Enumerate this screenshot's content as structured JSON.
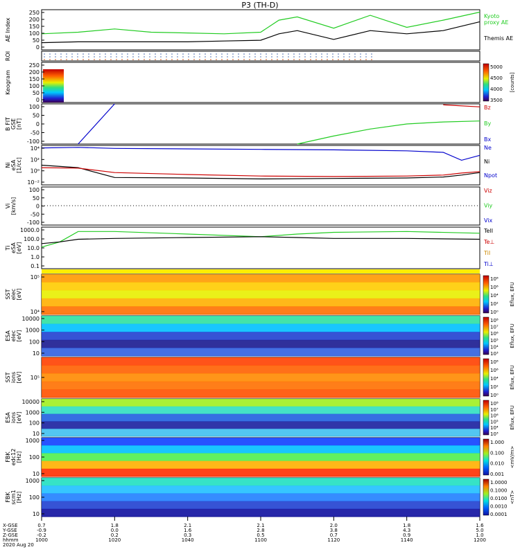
{
  "title": "P3 (TH-D)",
  "colors": {
    "ae_kyoto": "#22cc22",
    "ae_themis": "#000000",
    "bz": "#cc0000",
    "by": "#22cc22",
    "bx": "#0000cc",
    "ne": "#0000cc",
    "ni": "#000000",
    "npot": "#cc0000",
    "te": "#000000",
    "ti": "#22cc22"
  },
  "panels": [
    {
      "id": "ae",
      "ylabel": [
        "AE Index"
      ],
      "ticks": [
        "250",
        "200",
        "150",
        "100",
        "50",
        "0"
      ],
      "legend": [
        "Kyoto",
        "proxy AE",
        "Themis AE"
      ]
    },
    {
      "id": "roi",
      "ylabel": [
        "ROI"
      ],
      "ticks": [],
      "legend": []
    },
    {
      "id": "keogram",
      "ylabel": [
        "Keogram"
      ],
      "ticks": [
        "250",
        "200",
        "150",
        "100",
        "50",
        "0"
      ],
      "legend": []
    },
    {
      "id": "bfield",
      "ylabel": [
        "B FIT",
        "GSE",
        "[nT]"
      ],
      "ticks": [
        "100",
        "50",
        "0",
        "-50",
        "-100"
      ],
      "legend": [
        "Bz",
        "By",
        "Bx"
      ]
    },
    {
      "id": "density",
      "ylabel": [
        "Ni",
        "eSA",
        "[1/cc]"
      ],
      "ticks": [
        "10⁴",
        "10²",
        "10⁰",
        "10⁻²"
      ],
      "legend": [
        "Ne",
        "Ni",
        "Npot"
      ]
    },
    {
      "id": "velocity",
      "ylabel": [
        "Vi",
        "[km/s]"
      ],
      "ticks": [
        "100",
        "50",
        "0",
        "-50",
        "-100"
      ],
      "legend": [
        "Viz",
        "Viy",
        "Vix"
      ]
    },
    {
      "id": "temp",
      "ylabel": [
        "Ti",
        "eSA",
        "[eV]"
      ],
      "ticks": [
        "1000.0",
        "100.0",
        "10.0",
        "1.0",
        "0.1"
      ],
      "legend": [
        "TeII",
        "Te⊥",
        "TiI",
        "Ti⊥"
      ]
    },
    {
      "id": "sst_e",
      "ylabel": [
        "SST",
        "elec",
        "[eV]"
      ],
      "ticks": [
        "10⁵",
        "10⁴"
      ],
      "legend": []
    },
    {
      "id": "esa_e",
      "ylabel": [
        "ESA",
        "elec",
        "[eV]"
      ],
      "ticks": [
        "10000",
        "1000",
        "100",
        "10"
      ],
      "legend": []
    },
    {
      "id": "sst_i",
      "ylabel": [
        "SST",
        "ions",
        "[eV]"
      ],
      "ticks": [
        "10⁵"
      ],
      "legend": []
    },
    {
      "id": "esa_i",
      "ylabel": [
        "ESA",
        "ions",
        "[eV]"
      ],
      "ticks": [
        "10000",
        "1000",
        "100",
        "10"
      ],
      "legend": []
    },
    {
      "id": "fbk_e",
      "ylabel": [
        "FBK",
        "edc12",
        "[Hz]"
      ],
      "ticks": [
        "1000",
        "100",
        "10"
      ],
      "legend": []
    },
    {
      "id": "fbk_b",
      "ylabel": [
        "FBK",
        "scm1",
        "[Hz]"
      ],
      "ticks": [
        "1000",
        "100",
        "10"
      ],
      "legend": []
    }
  ],
  "colorbars": [
    {
      "panel": "keogram",
      "ticks": [
        "5000",
        "4500",
        "4000",
        "3500"
      ],
      "label": "[counts]"
    },
    {
      "panel": "sst_e",
      "ticks": [
        "10⁸",
        "10⁶",
        "10⁴",
        "10²",
        "10⁰"
      ],
      "label": "Eflux, EFU"
    },
    {
      "panel": "esa_e",
      "ticks": [
        "10⁸",
        "10⁷",
        "10⁶",
        "10⁵",
        "10⁴",
        "10³"
      ],
      "label": "Eflux, EFU"
    },
    {
      "panel": "sst_i",
      "ticks": [
        "10⁸",
        "10⁶",
        "10⁴",
        "10²",
        "10⁰"
      ],
      "label": "Eflux, EFU"
    },
    {
      "panel": "esa_i",
      "ticks": [
        "10⁸",
        "10⁷",
        "10⁶",
        "10⁵",
        "10⁴",
        "10³"
      ],
      "label": "Eflux, EFU"
    },
    {
      "panel": "fbk_e",
      "ticks": [
        "1.000",
        "0.100",
        "0.010",
        "0.001"
      ],
      "label": "<mV/m>"
    },
    {
      "panel": "fbk_b",
      "ticks": [
        "1.0000",
        "0.1000",
        "0.0100",
        "0.0010",
        "0.0001"
      ],
      "label": "<nT>"
    }
  ],
  "axis": {
    "row_labels": [
      "X-GSE",
      "Y-GSE",
      "Z-GSE",
      "hhmm",
      "2020 Aug 20"
    ],
    "columns": [
      {
        "x": "0.7",
        "y": "-0.9",
        "z": "-0.2",
        "t": "1000"
      },
      {
        "x": "1.8",
        "y": "0.0",
        "z": "0.2",
        "t": "1020"
      },
      {
        "x": "2.1",
        "y": "1.6",
        "z": "0.3",
        "t": "1040"
      },
      {
        "x": "2.1",
        "y": "2.8",
        "z": "0.5",
        "t": "1100"
      },
      {
        "x": "2.0",
        "y": "3.8",
        "z": "0.7",
        "t": "1120"
      },
      {
        "x": "1.8",
        "y": "4.3",
        "z": "0.9",
        "t": "1140"
      },
      {
        "x": "1.6",
        "y": "5.0",
        "z": "1.0",
        "t": "1200"
      }
    ]
  },
  "chart_data": [
    {
      "type": "line",
      "panel": "AE Index",
      "x": [
        "1000",
        "1010",
        "1020",
        "1030",
        "1040",
        "1050",
        "1100",
        "1105",
        "1110",
        "1120",
        "1130",
        "1140",
        "1150",
        "1200"
      ],
      "ylim": [
        0,
        250
      ],
      "series": [
        {
          "name": "Kyoto proxy AE",
          "values": [
            100,
            110,
            130,
            110,
            105,
            100,
            110,
            185,
            205,
            135,
            215,
            140,
            185,
            235
          ]
        },
        {
          "name": "Themis AE",
          "values": [
            45,
            50,
            50,
            50,
            50,
            55,
            60,
            100,
            120,
            65,
            120,
            100,
            120,
            175
          ]
        }
      ]
    },
    {
      "type": "line",
      "panel": "B FIT GSE",
      "x": [
        "1000",
        "1010",
        "1020",
        "1030",
        "1040",
        "1050",
        "1100",
        "1110",
        "1120",
        "1130",
        "1140",
        "1150",
        "1200"
      ],
      "ylim": [
        -100,
        100
      ],
      "series": [
        {
          "name": "By",
          "values": [
            null,
            null,
            null,
            null,
            null,
            null,
            null,
            -100,
            -60,
            -25,
            0,
            10,
            15
          ]
        },
        {
          "name": "Bx",
          "values": [
            null,
            -100,
            100,
            null,
            null,
            null,
            null,
            null,
            null,
            null,
            null,
            null,
            null
          ]
        },
        {
          "name": "Bz",
          "values": [
            null,
            null,
            null,
            null,
            null,
            null,
            null,
            null,
            null,
            null,
            null,
            95,
            85
          ]
        }
      ]
    },
    {
      "type": "line",
      "panel": "Ni eSA",
      "x": [
        "1000",
        "1010",
        "1020",
        "1040",
        "1100",
        "1120",
        "1140",
        "1150",
        "1155",
        "1200"
      ],
      "ylim_log10": [
        -3,
        5
      ],
      "series": [
        {
          "name": "Ne",
          "values": [
            4.5,
            4.6,
            4.4,
            4.3,
            4.2,
            4.1,
            3.9,
            3.6,
            2.0,
            3.0
          ]
        },
        {
          "name": "Ni",
          "values": [
            1.0,
            0.5,
            -1.5,
            -1.6,
            -1.8,
            -1.7,
            -1.6,
            -1.4,
            -1.0,
            -0.5
          ]
        },
        {
          "name": "Npot",
          "values": [
            0.5,
            0.4,
            -0.5,
            -0.9,
            -1.2,
            -1.3,
            -1.2,
            -1.0,
            -0.6,
            -0.3
          ]
        }
      ]
    },
    {
      "type": "line",
      "panel": "Ti eSA",
      "x": [
        "1000",
        "1005",
        "1010",
        "1020",
        "1040",
        "1100",
        "1110",
        "1120",
        "1140",
        "1200"
      ],
      "ylim_log10": [
        -1.3,
        3.5
      ],
      "series": [
        {
          "name": "TiI",
          "values": [
            1.2,
            1.8,
            3.0,
            3.0,
            2.7,
            2.4,
            2.7,
            2.9,
            3.0,
            2.8
          ]
        },
        {
          "name": "TeII",
          "values": [
            1.6,
            1.8,
            2.1,
            2.2,
            2.3,
            2.4,
            2.3,
            2.2,
            2.2,
            2.1
          ]
        }
      ]
    }
  ]
}
